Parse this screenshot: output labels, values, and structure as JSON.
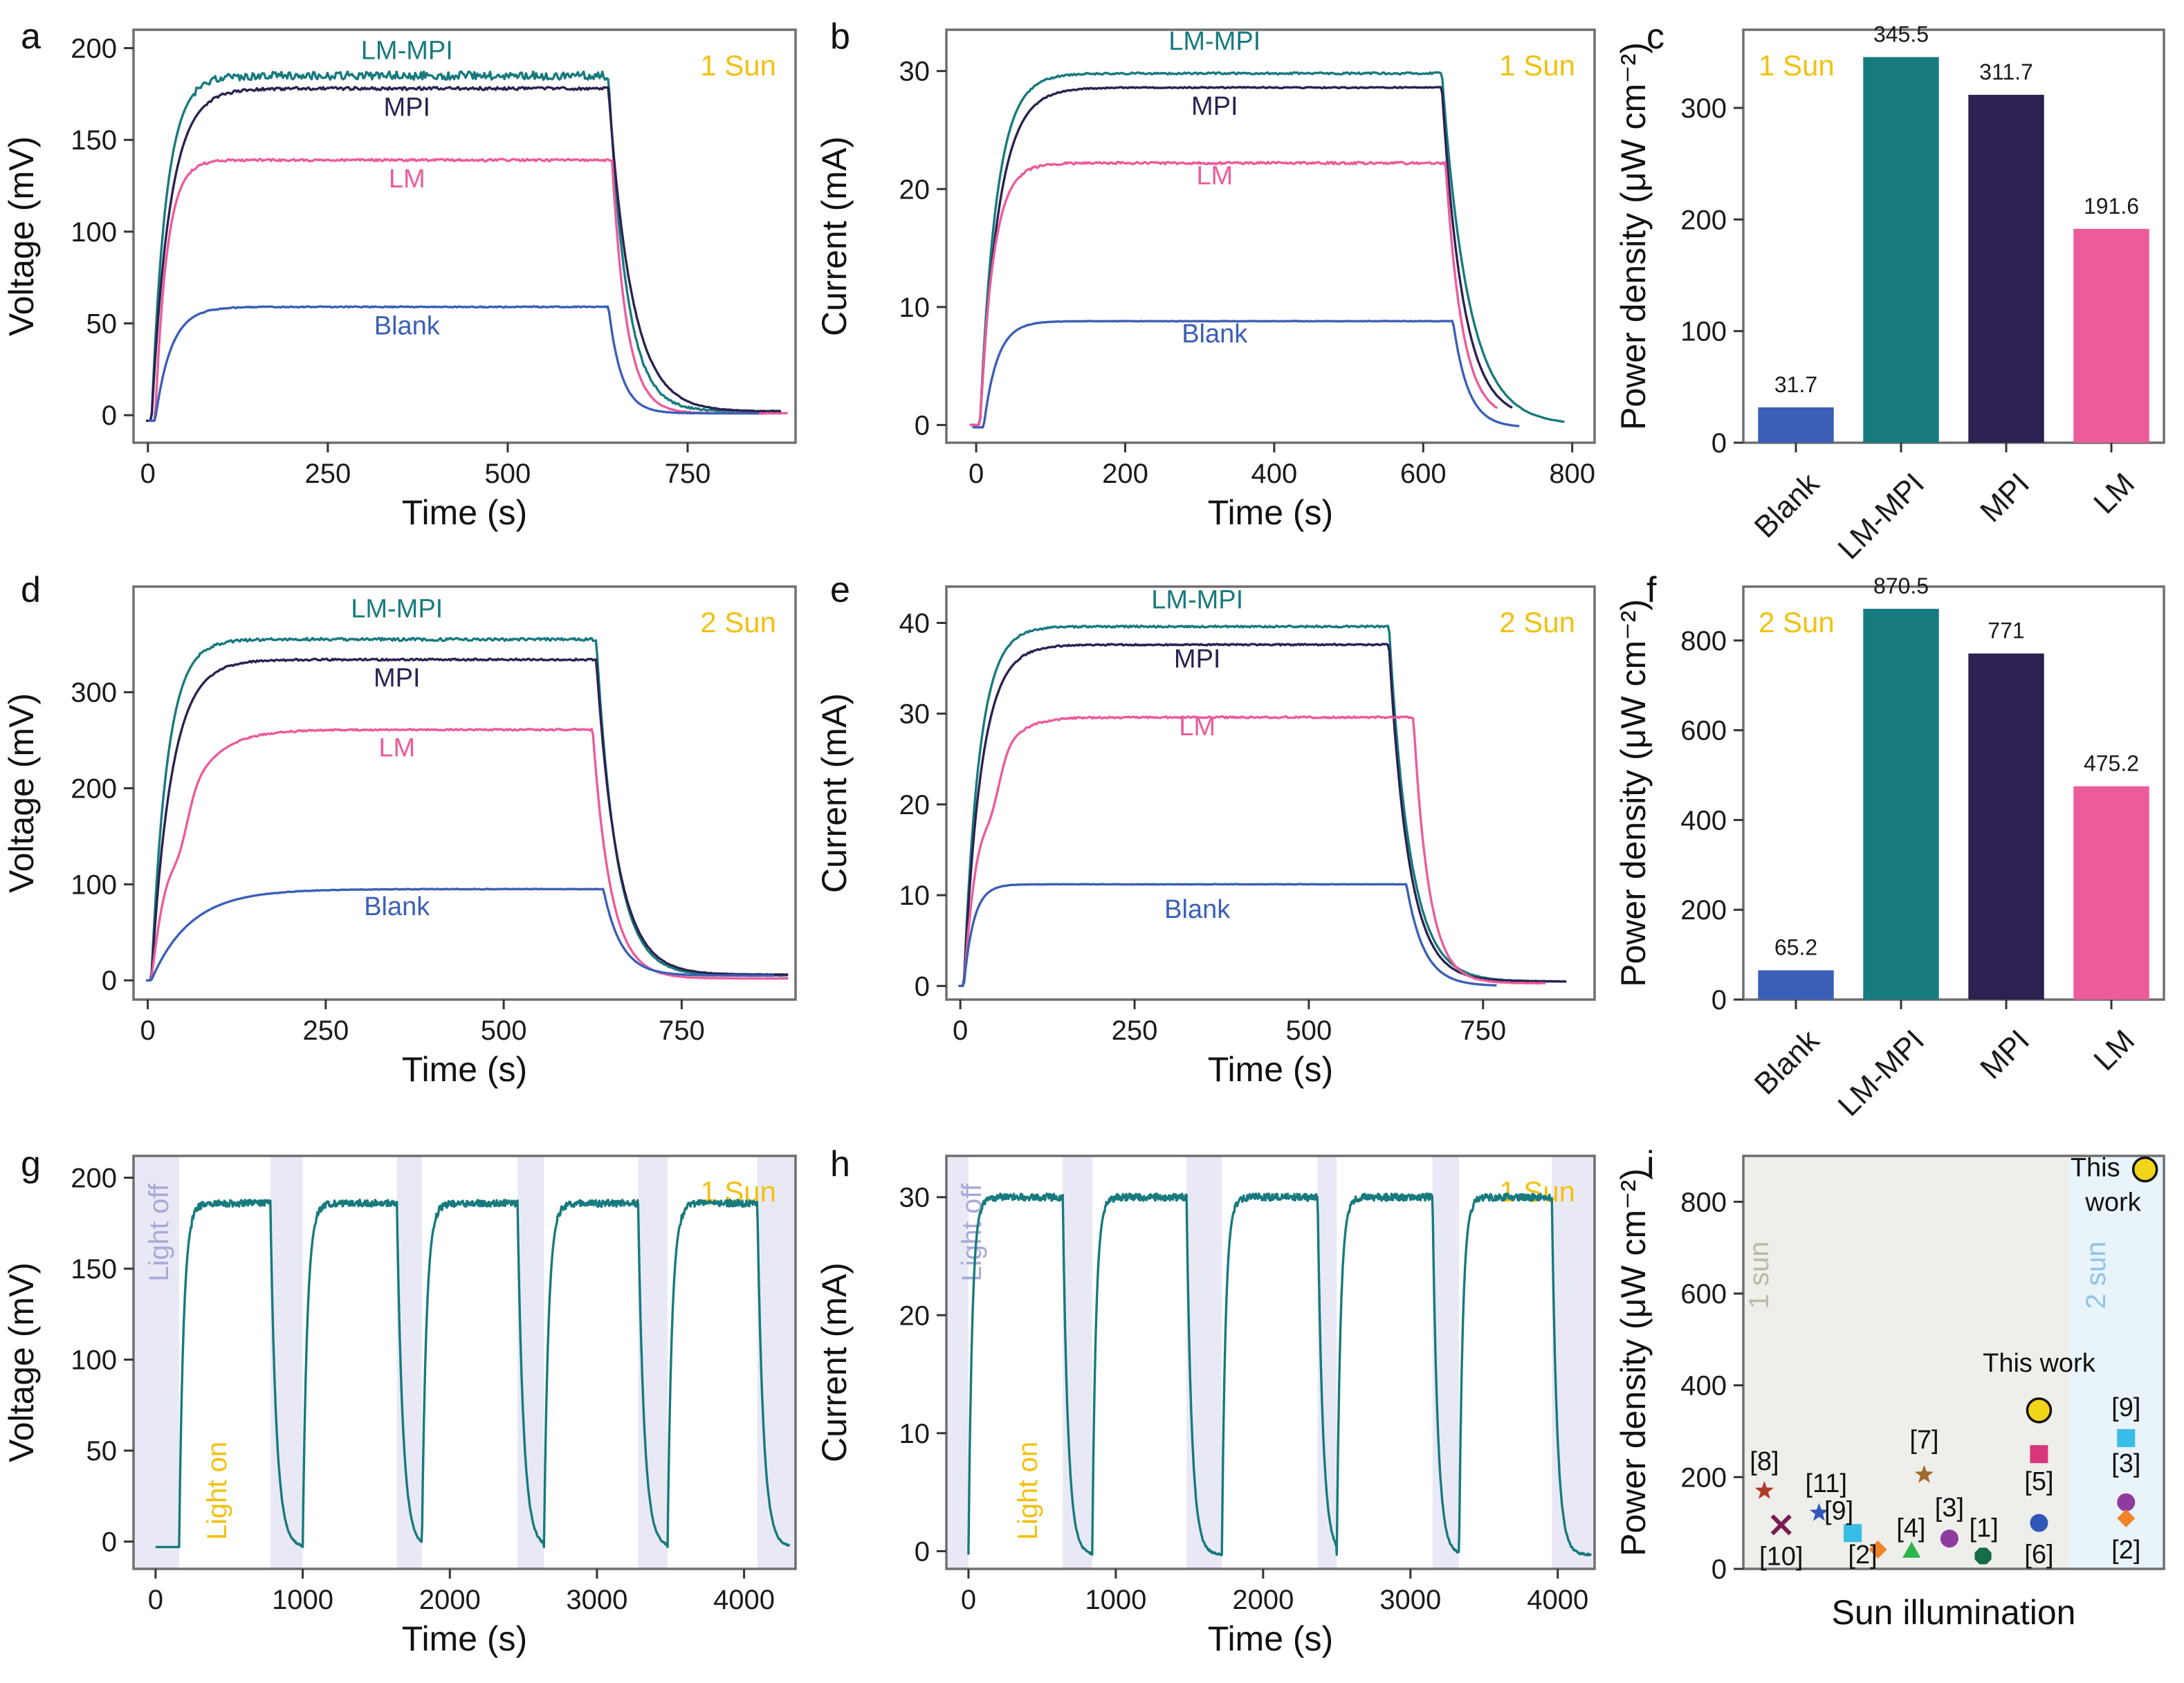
{
  "colors": {
    "blank": "#3b5fb6",
    "lmmpi": "#177a7e",
    "mpi": "#2c2150",
    "lm": "#ec5b9a",
    "sun": "#f2c10f",
    "lightoff_band": "#e9e9f5",
    "lightoff_text": "#a9a9d8",
    "sun1_band": "#eeeeea",
    "sun1_text": "#bcb9a6",
    "sun2_band": "#e8f3fa",
    "sun2_text": "#8fc4ea"
  },
  "chart_data": [
    {
      "id": "a",
      "type": "line",
      "panel_label": "a",
      "condition": "1 Sun",
      "xlabel": "Time (s)",
      "ylabel": "Voltage (mV)",
      "xlim": [
        -20,
        900
      ],
      "ylim": [
        -15,
        210
      ],
      "xticks": [
        0,
        250,
        500,
        750
      ],
      "yticks": [
        0,
        50,
        100,
        150,
        200
      ],
      "series": [
        {
          "name": "LM-MPI",
          "key": "lmmpi",
          "plateau": 185,
          "on": 5,
          "off": 640,
          "end": 880,
          "tau": 20,
          "tauOff": 25,
          "start": -3,
          "floor": 2,
          "noise": 2.2
        },
        {
          "name": "MPI",
          "key": "mpi",
          "plateau": 178,
          "on": 5,
          "off": 640,
          "end": 880,
          "tau": 25,
          "tauOff": 32,
          "start": -3,
          "floor": 2,
          "noise": 0.8
        },
        {
          "name": "LM",
          "key": "lm",
          "plateau": 139,
          "on": 10,
          "off": 645,
          "end": 890,
          "tau": 16,
          "tauOff": 20,
          "start": -3,
          "floor": 1,
          "noise": 0.6
        },
        {
          "name": "Blank",
          "key": "blank",
          "plateau": 59,
          "on": 10,
          "off": 640,
          "end": 850,
          "tau": 22,
          "tauOff": 18,
          "start": -3,
          "floor": 1,
          "noise": 0.3
        }
      ],
      "annotations": [
        {
          "text": "LM-MPI",
          "key": "lmmpi",
          "x": 360,
          "y": 194
        },
        {
          "text": "MPI",
          "key": "mpi",
          "x": 360,
          "y": 163
        },
        {
          "text": "LM",
          "key": "lm",
          "x": 360,
          "y": 124
        },
        {
          "text": "Blank",
          "key": "blank",
          "x": 360,
          "y": 44
        }
      ]
    },
    {
      "id": "b",
      "type": "line",
      "panel_label": "b",
      "condition": "1 Sun",
      "xlabel": "Time (s)",
      "ylabel": "Current (mA)",
      "xlim": [
        -40,
        830
      ],
      "ylim": [
        -1.5,
        33.5
      ],
      "xticks": [
        0,
        200,
        400,
        600,
        800
      ],
      "yticks": [
        0,
        10,
        20,
        30
      ],
      "series": [
        {
          "name": "LM-MPI",
          "key": "lmmpi",
          "plateau": 29.8,
          "on": 5,
          "off": 625,
          "end": 790,
          "tau": 22,
          "tauOff": 35,
          "start": 0,
          "floor": 0,
          "noise": 0.08
        },
        {
          "name": "MPI",
          "key": "mpi",
          "plateau": 28.6,
          "on": 5,
          "off": 625,
          "end": 720,
          "tau": 25,
          "tauOff": 28,
          "start": 0,
          "floor": 0.5,
          "noise": 0.05
        },
        {
          "name": "LM",
          "key": "lm",
          "plateau": 22.2,
          "on": 5,
          "off": 630,
          "end": 700,
          "tau": 18,
          "tauOff": 22,
          "start": 0,
          "floor": 0.5,
          "noise": 0.1
        },
        {
          "name": "Blank",
          "key": "blank",
          "plateau": 8.8,
          "on": 10,
          "off": 640,
          "end": 730,
          "tau": 18,
          "tauOff": 20,
          "start": -0.2,
          "floor": -0.2,
          "noise": 0.02
        }
      ],
      "annotations": [
        {
          "text": "LM-MPI",
          "key": "lmmpi",
          "x": 320,
          "y": 31.8
        },
        {
          "text": "MPI",
          "key": "mpi",
          "x": 320,
          "y": 26.3
        },
        {
          "text": "LM",
          "key": "lm",
          "x": 320,
          "y": 20.4
        },
        {
          "text": "Blank",
          "key": "blank",
          "x": 320,
          "y": 7.0
        }
      ]
    },
    {
      "id": "c",
      "type": "bar",
      "panel_label": "c",
      "condition": "1 Sun",
      "ylabel": "Power density (μW cm⁻²)",
      "ylim": [
        0,
        370
      ],
      "yticks": [
        0,
        100,
        200,
        300
      ],
      "categories": [
        "Blank",
        "LM-MPI",
        "MPI",
        "LM"
      ],
      "keys": [
        "blank",
        "lmmpi",
        "mpi",
        "lm"
      ],
      "values": [
        31.7,
        345.5,
        311.7,
        191.6
      ],
      "value_labels": [
        "31.7",
        "345.5",
        "311.7",
        "191.6"
      ]
    },
    {
      "id": "d",
      "type": "line",
      "panel_label": "d",
      "condition": "2 Sun",
      "xlabel": "Time (s)",
      "ylabel": "Voltage (mV)",
      "xlim": [
        -20,
        910
      ],
      "ylim": [
        -20,
        410
      ],
      "xticks": [
        0,
        250,
        500,
        750
      ],
      "yticks": [
        0,
        100,
        200,
        300
      ],
      "series": [
        {
          "name": "LM-MPI",
          "key": "lmmpi",
          "plateau": 355,
          "on": 5,
          "off": 630,
          "end": 900,
          "tau": 22,
          "tauOff": 28,
          "start": 0,
          "floor": 5,
          "noise": 1.5
        },
        {
          "name": "MPI",
          "key": "mpi",
          "plateau": 334,
          "on": 5,
          "off": 630,
          "end": 900,
          "tau": 28,
          "tauOff": 30,
          "start": 0,
          "floor": 6,
          "noise": 1
        },
        {
          "name": "LM",
          "key": "lm",
          "plateau": 261,
          "on": 5,
          "off": 625,
          "end": 900,
          "tau": 40,
          "tauOff": 25,
          "start": 0,
          "floor": 2,
          "noise": 0.8,
          "kink": true
        },
        {
          "name": "Blank",
          "key": "blank",
          "plateau": 95,
          "on": 5,
          "off": 640,
          "end": 880,
          "tau": 55,
          "tauOff": 25,
          "start": 0,
          "floor": 5,
          "noise": 0.3
        }
      ],
      "annotations": [
        {
          "text": "LM-MPI",
          "key": "lmmpi",
          "x": 350,
          "y": 378
        },
        {
          "text": "MPI",
          "key": "mpi",
          "x": 350,
          "y": 306
        },
        {
          "text": "LM",
          "key": "lm",
          "x": 350,
          "y": 233
        },
        {
          "text": "Blank",
          "key": "blank",
          "x": 350,
          "y": 68
        }
      ]
    },
    {
      "id": "e",
      "type": "line",
      "panel_label": "e",
      "condition": "2 Sun",
      "xlabel": "Time (s)",
      "ylabel": "Current (mA)",
      "xlim": [
        -20,
        910
      ],
      "ylim": [
        -1.5,
        44
      ],
      "xticks": [
        0,
        250,
        500,
        750
      ],
      "yticks": [
        0,
        10,
        20,
        30,
        40
      ],
      "series": [
        {
          "name": "LM-MPI",
          "key": "lmmpi",
          "plateau": 39.6,
          "on": 5,
          "off": 615,
          "end": 860,
          "tau": 22,
          "tauOff": 30,
          "start": 0,
          "floor": 0.5,
          "noise": 0.1
        },
        {
          "name": "MPI",
          "key": "mpi",
          "plateau": 37.6,
          "on": 5,
          "off": 615,
          "end": 870,
          "tau": 25,
          "tauOff": 28,
          "start": 0,
          "floor": 0.5,
          "noise": 0.08
        },
        {
          "name": "LM",
          "key": "lm",
          "plateau": 29.6,
          "on": 5,
          "off": 650,
          "end": 840,
          "tau": 28,
          "tauOff": 22,
          "start": 0,
          "floor": 0.3,
          "noise": 0.1,
          "kink": true
        },
        {
          "name": "Blank",
          "key": "blank",
          "plateau": 11.2,
          "on": 5,
          "off": 640,
          "end": 770,
          "tau": 14,
          "tauOff": 25,
          "start": 0,
          "floor": 0,
          "noise": 0.02
        }
      ],
      "annotations": [
        {
          "text": "LM-MPI",
          "key": "lmmpi",
          "x": 340,
          "y": 41.6
        },
        {
          "text": "MPI",
          "key": "mpi",
          "x": 340,
          "y": 35.1
        },
        {
          "text": "LM",
          "key": "lm",
          "x": 340,
          "y": 27.6
        },
        {
          "text": "Blank",
          "key": "blank",
          "x": 340,
          "y": 7.5
        }
      ]
    },
    {
      "id": "f",
      "type": "bar",
      "panel_label": "f",
      "condition": "2 Sun",
      "ylabel": "Power density (μW cm⁻²)",
      "ylim": [
        0,
        920
      ],
      "yticks": [
        0,
        200,
        400,
        600,
        800
      ],
      "categories": [
        "Blank",
        "LM-MPI",
        "MPI",
        "LM"
      ],
      "keys": [
        "blank",
        "lmmpi",
        "mpi",
        "lm"
      ],
      "values": [
        65.2,
        870.5,
        771,
        475.2
      ],
      "value_labels": [
        "65.2",
        "870.5",
        "771",
        "475.2"
      ]
    },
    {
      "id": "g",
      "type": "line",
      "panel_label": "g",
      "condition": "1 Sun",
      "xlabel": "Time (s)",
      "ylabel": "Voltage (mV)",
      "xlim": [
        -150,
        4350
      ],
      "ylim": [
        -15,
        212
      ],
      "xticks": [
        0,
        1000,
        2000,
        3000,
        4000
      ],
      "yticks": [
        0,
        50,
        100,
        150,
        200
      ],
      "light_off_label": "Light off",
      "light_on_label": "Light on",
      "dark_intervals": [
        [
          -150,
          160
        ],
        [
          780,
          1000
        ],
        [
          1640,
          1810
        ],
        [
          2460,
          2640
        ],
        [
          3280,
          3480
        ],
        [
          4090,
          4350
        ]
      ],
      "light_intervals": [
        [
          160,
          780
        ],
        [
          1000,
          1640
        ],
        [
          1810,
          2460
        ],
        [
          2640,
          3280
        ],
        [
          3480,
          4090
        ]
      ],
      "plateau": 186,
      "tau": 30,
      "tauOff": 40,
      "floor": -3,
      "end": 4310,
      "key": "lmmpi"
    },
    {
      "id": "h",
      "type": "line",
      "panel_label": "h",
      "condition": "1 Sun",
      "xlabel": "Time (s)",
      "ylabel": "Current (mA)",
      "xlim": [
        -150,
        4250
      ],
      "ylim": [
        -1.5,
        33.5
      ],
      "xticks": [
        0,
        1000,
        2000,
        3000,
        4000
      ],
      "yticks": [
        0,
        10,
        20,
        30
      ],
      "light_off_label": "Light off",
      "light_on_label": "Light on",
      "dark_intervals": [
        [
          -150,
          0
        ],
        [
          640,
          840
        ],
        [
          1480,
          1720
        ],
        [
          2370,
          2500
        ],
        [
          3150,
          3330
        ],
        [
          3960,
          4250
        ]
      ],
      "light_intervals": [
        [
          0,
          640
        ],
        [
          840,
          1480
        ],
        [
          1720,
          2370
        ],
        [
          2500,
          3150
        ],
        [
          3330,
          3960
        ]
      ],
      "plateau": 30.0,
      "tau": 25,
      "tauOff": 35,
      "floor": -0.3,
      "end": 4230,
      "key": "lmmpi"
    },
    {
      "id": "i",
      "type": "scatter",
      "panel_label": "i",
      "xlabel": "Sun illumination",
      "ylabel": "Power density (μW cm⁻²)",
      "ylim": [
        0,
        900
      ],
      "yticks": [
        0,
        200,
        400,
        600,
        800
      ],
      "region_labels": [
        "1 sun",
        "2 sun"
      ],
      "points": [
        {
          "ref": "[8]",
          "value": 170,
          "shape": "star",
          "color": "#b03a28",
          "x": 0.05
        },
        {
          "ref": "[10]",
          "value": 96,
          "shape": "x",
          "color": "#7a1d52",
          "x": 0.09
        },
        {
          "ref": "[11]",
          "value": 122,
          "shape": "star",
          "color": "#2f56b8",
          "x": 0.18
        },
        {
          "ref": "[9]",
          "value": 78,
          "shape": "square",
          "color": "#37bde6",
          "x": 0.26
        },
        {
          "ref": "[2]",
          "value": 42,
          "shape": "diamond",
          "color": "#f08427",
          "x": 0.32
        },
        {
          "ref": "[4]",
          "value": 40,
          "shape": "triangle",
          "color": "#2db64e",
          "x": 0.4
        },
        {
          "ref": "[7]",
          "value": 205,
          "shape": "star",
          "color": "#a06a30",
          "x": 0.43
        },
        {
          "ref": "[3]",
          "value": 66,
          "shape": "circle",
          "color": "#8e3a9e",
          "x": 0.49
        },
        {
          "ref": "[1]",
          "value": 28,
          "shape": "octagon",
          "color": "#156c45",
          "x": 0.57
        },
        {
          "ref": "This work",
          "value": 345.5,
          "shape": "circle-outline",
          "color": "#f2d418",
          "x": 0.703
        },
        {
          "ref": "[5]",
          "value": 250,
          "shape": "square",
          "color": "#d8367a",
          "x": 0.703
        },
        {
          "ref": "[6]",
          "value": 100,
          "shape": "circle",
          "color": "#2f56b8",
          "x": 0.703
        },
        {
          "ref": "This work",
          "value": 870.5,
          "shape": "circle-outline",
          "color": "#f2d418",
          "x": 0.955
        },
        {
          "ref": "[9]",
          "value": 285,
          "shape": "square",
          "color": "#37bde6",
          "x": 0.91
        },
        {
          "ref": "[3]",
          "value": 145,
          "shape": "circle",
          "color": "#8e3a9e",
          "x": 0.91
        },
        {
          "ref": "[2]",
          "value": 110,
          "shape": "diamond",
          "color": "#f08427",
          "x": 0.91
        }
      ]
    }
  ]
}
